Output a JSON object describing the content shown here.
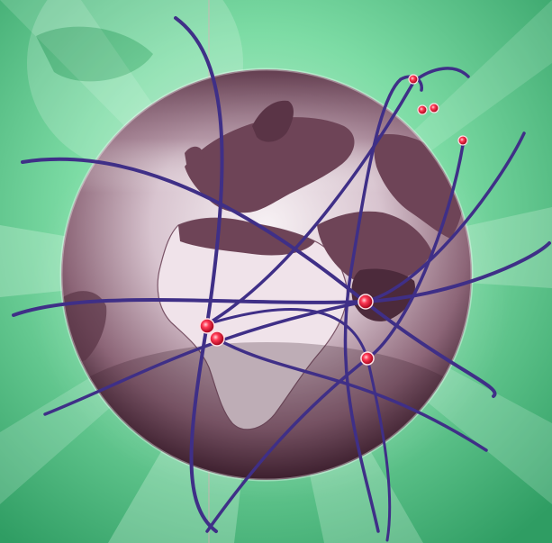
{
  "scene": {
    "subject": "globe-with-network-arcs",
    "colors": {
      "background_light": "#c9f3d9",
      "background_mid": "#7ddca5",
      "background_dark": "#2f9d63",
      "globe_land": "#6e4457",
      "globe_land_dark": "#4c2a3b",
      "globe_highlight": "#f7f1f4",
      "globe_shadow": "#3d1f2e",
      "arc_color": "#3f2f87",
      "node_color": "#e01030",
      "node_glow": "#ffb0b8"
    },
    "node_count": 8,
    "arc_count": 9
  }
}
